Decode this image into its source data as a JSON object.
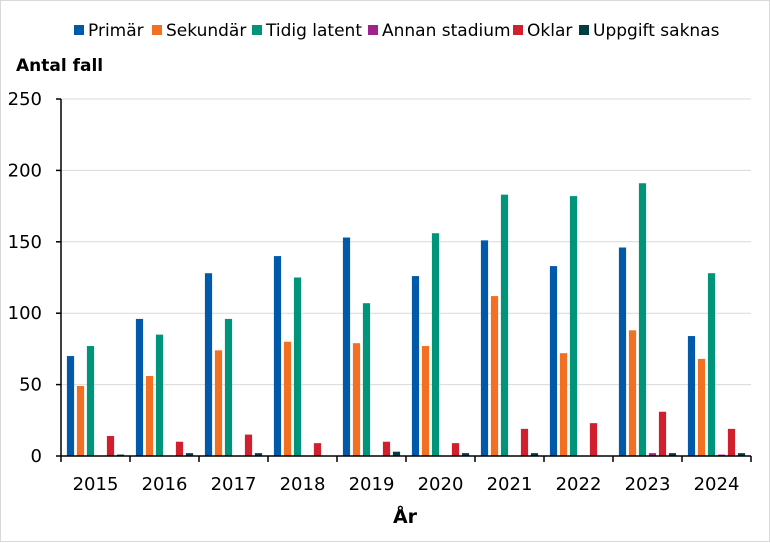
{
  "chart_data": {
    "type": "bar",
    "title": "",
    "xlabel": "År",
    "ylabel": "Antal fall",
    "ylim": [
      0,
      250
    ],
    "yticks": [
      0,
      50,
      100,
      150,
      200,
      250
    ],
    "grid": true,
    "legend_position": "top",
    "categories": [
      "2015",
      "2016",
      "2017",
      "2018",
      "2019",
      "2020",
      "2021",
      "2022",
      "2023",
      "2024"
    ],
    "series": [
      {
        "name": "Primär",
        "color": "#005AA9",
        "values": [
          70,
          96,
          128,
          140,
          153,
          126,
          151,
          133,
          146,
          84
        ]
      },
      {
        "name": "Sekundär",
        "color": "#F36F21",
        "values": [
          49,
          56,
          74,
          80,
          79,
          77,
          112,
          72,
          88,
          68
        ]
      },
      {
        "name": "Tidig latent",
        "color": "#00957A",
        "values": [
          77,
          85,
          96,
          125,
          107,
          156,
          183,
          182,
          191,
          128
        ]
      },
      {
        "name": "Annan stadium",
        "color": "#A1228D",
        "values": [
          0,
          0,
          0,
          0,
          0,
          0,
          0,
          0,
          2,
          1
        ]
      },
      {
        "name": "Oklar",
        "color": "#D11F2D",
        "values": [
          14,
          10,
          15,
          9,
          10,
          9,
          19,
          23,
          31,
          19
        ]
      },
      {
        "name": "Uppgift saknas",
        "color": "#003D45",
        "values": [
          1,
          2,
          2,
          0,
          3,
          2,
          2,
          0,
          2,
          2
        ]
      }
    ]
  }
}
